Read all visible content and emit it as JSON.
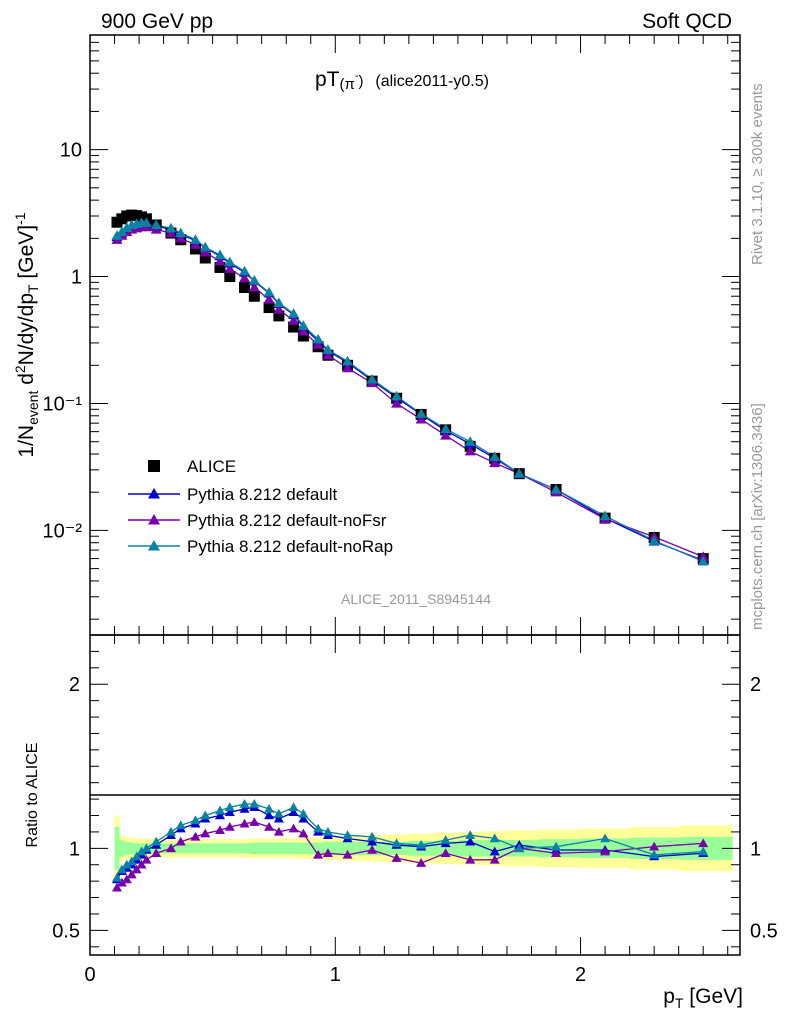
{
  "header": {
    "left": "900 GeV pp",
    "right": "Soft QCD"
  },
  "plot_title": {
    "main": "pT",
    "sub": "(π",
    "sup": "-",
    "tail": ")",
    "ref": "(alice2011-y0.5)"
  },
  "watermark": "ALICE_2011_S8945144",
  "side_labels": {
    "rivet": "Rivet 3.1.10, ≥ 300k events",
    "mcplots": "mcplots.cern.ch [arXiv:1306.3436]"
  },
  "colors": {
    "data": "#000000",
    "default": "#0000cc",
    "noFsr": "#7a00a8",
    "noRap": "#0a82a6",
    "band_inner": "#99ff99",
    "band_outer": "#ffff99"
  },
  "chart_data": [
    {
      "type": "line",
      "panel": "main",
      "yscale": "log",
      "ylabel": "1/N_event d²N/dy/dp_T [GeV]⁻¹",
      "xlim": [
        0,
        2.65
      ],
      "ylim": [
        0.0015,
        80
      ],
      "legend_position": "bottom-left",
      "y_tick_labels": [
        "10",
        "1",
        "10⁻¹",
        "10⁻²"
      ],
      "x": [
        0.11,
        0.13,
        0.15,
        0.17,
        0.19,
        0.21,
        0.23,
        0.27,
        0.33,
        0.37,
        0.43,
        0.47,
        0.53,
        0.57,
        0.63,
        0.67,
        0.73,
        0.77,
        0.83,
        0.87,
        0.93,
        0.97,
        1.05,
        1.15,
        1.25,
        1.35,
        1.45,
        1.55,
        1.65,
        1.75,
        1.9,
        2.1,
        2.3,
        2.5
      ],
      "series": [
        {
          "name": "ALICE",
          "marker": "square",
          "values": [
            2.68,
            2.85,
            3.0,
            3.05,
            3.02,
            2.95,
            2.85,
            2.55,
            2.2,
            1.95,
            1.65,
            1.4,
            1.18,
            1.0,
            0.82,
            0.7,
            0.57,
            0.49,
            0.4,
            0.34,
            0.28,
            0.24,
            0.2,
            0.15,
            0.11,
            0.082,
            0.062,
            0.046,
            0.037,
            0.028,
            0.021,
            0.0125,
            0.0088,
            0.006
          ]
        },
        {
          "name": "Pythia 8.212 default",
          "marker": "triangle",
          "values": [
            2.05,
            2.2,
            2.38,
            2.5,
            2.55,
            2.6,
            2.6,
            2.5,
            2.35,
            2.15,
            1.92,
            1.68,
            1.45,
            1.27,
            1.08,
            0.92,
            0.74,
            0.61,
            0.5,
            0.4,
            0.31,
            0.26,
            0.21,
            0.152,
            0.111,
            0.082,
            0.061,
            0.048,
            0.037,
            0.028,
            0.021,
            0.0125,
            0.0082,
            0.0058
          ]
        },
        {
          "name": "Pythia 8.212 default-noFsr",
          "marker": "triangle",
          "values": [
            1.95,
            2.1,
            2.25,
            2.35,
            2.4,
            2.45,
            2.45,
            2.35,
            2.2,
            2.0,
            1.78,
            1.55,
            1.32,
            1.15,
            0.97,
            0.82,
            0.66,
            0.55,
            0.45,
            0.37,
            0.29,
            0.24,
            0.19,
            0.145,
            0.1,
            0.075,
            0.056,
            0.042,
            0.034,
            0.028,
            0.02,
            0.0123,
            0.0089,
            0.0062
          ]
        },
        {
          "name": "Pythia 8.212 default-noRap",
          "marker": "triangle",
          "values": [
            2.1,
            2.25,
            2.42,
            2.55,
            2.6,
            2.65,
            2.65,
            2.55,
            2.4,
            2.2,
            1.95,
            1.7,
            1.48,
            1.3,
            1.1,
            0.93,
            0.75,
            0.62,
            0.51,
            0.41,
            0.32,
            0.265,
            0.215,
            0.155,
            0.114,
            0.083,
            0.063,
            0.05,
            0.038,
            0.028,
            0.021,
            0.013,
            0.0083,
            0.0057
          ]
        }
      ]
    },
    {
      "type": "line",
      "panel": "ratio",
      "xlabel": "p_T [GeV]",
      "ylabel": "Ratio to ALICE",
      "xlim": [
        0,
        2.65
      ],
      "ylim": [
        0.35,
        2.3
      ],
      "x_tick_labels": [
        "0",
        "1",
        "2"
      ],
      "y_tick_labels": [
        "2",
        "1",
        "0.5"
      ],
      "x": [
        0.11,
        0.13,
        0.15,
        0.17,
        0.19,
        0.21,
        0.23,
        0.27,
        0.33,
        0.37,
        0.43,
        0.47,
        0.53,
        0.57,
        0.63,
        0.67,
        0.73,
        0.77,
        0.83,
        0.87,
        0.93,
        0.97,
        1.05,
        1.15,
        1.25,
        1.35,
        1.45,
        1.55,
        1.65,
        1.75,
        1.9,
        2.1,
        2.3,
        2.5
      ],
      "series": [
        {
          "name": "Pythia 8.212 default",
          "values": [
            0.81,
            0.86,
            0.88,
            0.9,
            0.93,
            0.96,
            0.99,
            1.02,
            1.08,
            1.12,
            1.15,
            1.18,
            1.2,
            1.22,
            1.24,
            1.25,
            1.2,
            1.18,
            1.22,
            1.18,
            1.1,
            1.08,
            1.06,
            1.04,
            1.02,
            1.01,
            1.03,
            1.04,
            0.98,
            1.02,
            0.99,
            0.99,
            0.95,
            0.97
          ]
        },
        {
          "name": "Pythia 8.212 default-noFsr",
          "values": [
            0.76,
            0.79,
            0.81,
            0.84,
            0.87,
            0.9,
            0.93,
            0.97,
            1.0,
            1.04,
            1.07,
            1.09,
            1.11,
            1.13,
            1.15,
            1.16,
            1.13,
            1.1,
            1.12,
            1.09,
            0.96,
            0.97,
            0.96,
            0.99,
            0.94,
            0.91,
            0.97,
            0.93,
            0.93,
            1.0,
            0.97,
            0.98,
            1.01,
            1.03
          ]
        },
        {
          "name": "Pythia 8.212 default-noRap",
          "values": [
            0.82,
            0.87,
            0.9,
            0.92,
            0.95,
            0.98,
            1.0,
            1.04,
            1.1,
            1.14,
            1.17,
            1.2,
            1.23,
            1.25,
            1.27,
            1.27,
            1.24,
            1.21,
            1.25,
            1.21,
            1.12,
            1.1,
            1.08,
            1.07,
            1.03,
            1.02,
            1.05,
            1.08,
            1.06,
            1.0,
            1.01,
            1.06,
            0.96,
            0.98
          ]
        }
      ],
      "band_inner_halfwidth": [
        0.13,
        0.05,
        0.04,
        0.035,
        0.03,
        0.03,
        0.03,
        0.03,
        0.03,
        0.03,
        0.03,
        0.03,
        0.03,
        0.03,
        0.03,
        0.035,
        0.035,
        0.035,
        0.035,
        0.035,
        0.035,
        0.04,
        0.04,
        0.04,
        0.04,
        0.045,
        0.045,
        0.05,
        0.05,
        0.05,
        0.055,
        0.06,
        0.065,
        0.07
      ],
      "band_outer_halfwidth": [
        0.2,
        0.08,
        0.07,
        0.065,
        0.06,
        0.06,
        0.06,
        0.055,
        0.055,
        0.055,
        0.055,
        0.055,
        0.055,
        0.055,
        0.055,
        0.06,
        0.06,
        0.06,
        0.06,
        0.065,
        0.065,
        0.07,
        0.075,
        0.08,
        0.085,
        0.09,
        0.095,
        0.1,
        0.105,
        0.11,
        0.115,
        0.12,
        0.13,
        0.14
      ]
    }
  ]
}
